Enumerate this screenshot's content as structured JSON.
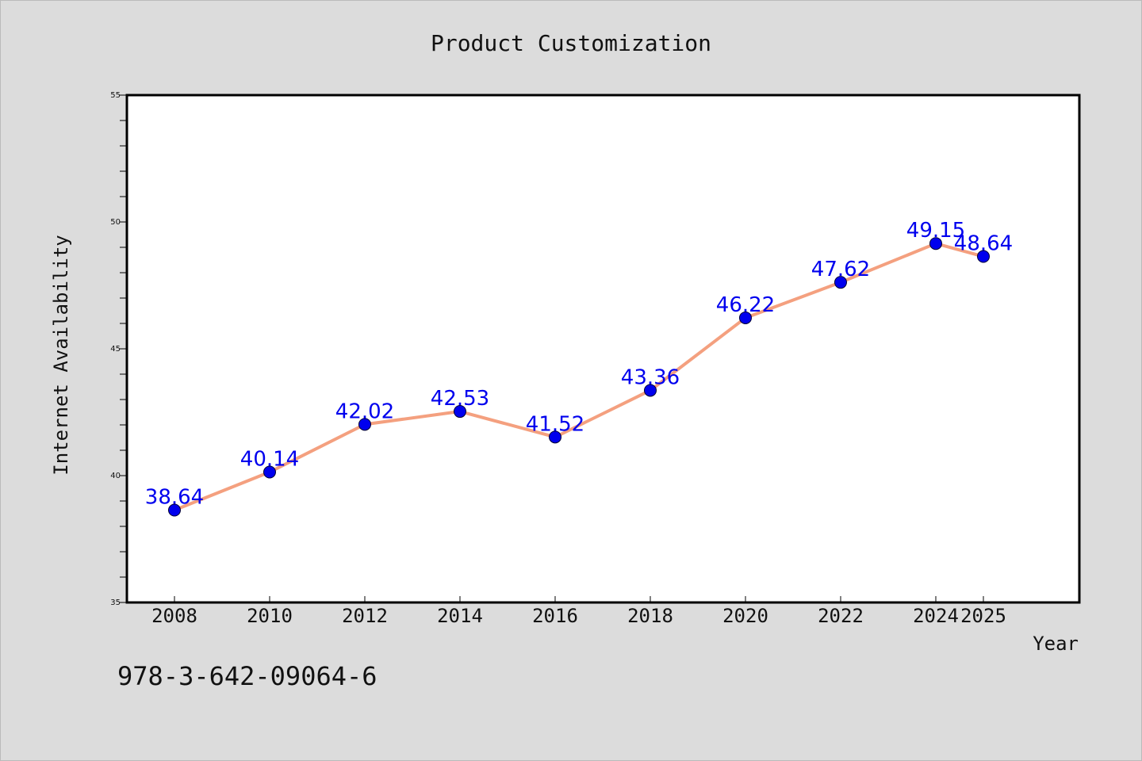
{
  "chart_data": {
    "type": "line",
    "title": "Product Customization",
    "xlabel": "Year",
    "ylabel": "Internet Availability",
    "categories": [
      "2008",
      "2010",
      "2012",
      "2014",
      "2016",
      "2018",
      "2020",
      "2022",
      "2024",
      "2025"
    ],
    "series": [
      {
        "values": [
          38.64,
          40.14,
          42.02,
          42.53,
          41.52,
          43.36,
          46.22,
          47.62,
          49.15,
          48.64
        ]
      }
    ],
    "data_labels": [
      "38.64",
      "40.14",
      "42.02",
      "42.53",
      "41.52",
      "43.36",
      "46.22",
      "47.62",
      "49.15",
      "48.64"
    ],
    "ylim": [
      35,
      55
    ],
    "yticks": [
      "35",
      "40",
      "45",
      "50",
      "55"
    ],
    "grid": false,
    "colors": {
      "line": "#f4a07f",
      "marker": "#0000ee",
      "label": "#0000ee",
      "background": "#dcdcdc",
      "plot": "#ffffff"
    }
  },
  "annotation": {
    "isbn": "978-3-642-09064-6"
  }
}
